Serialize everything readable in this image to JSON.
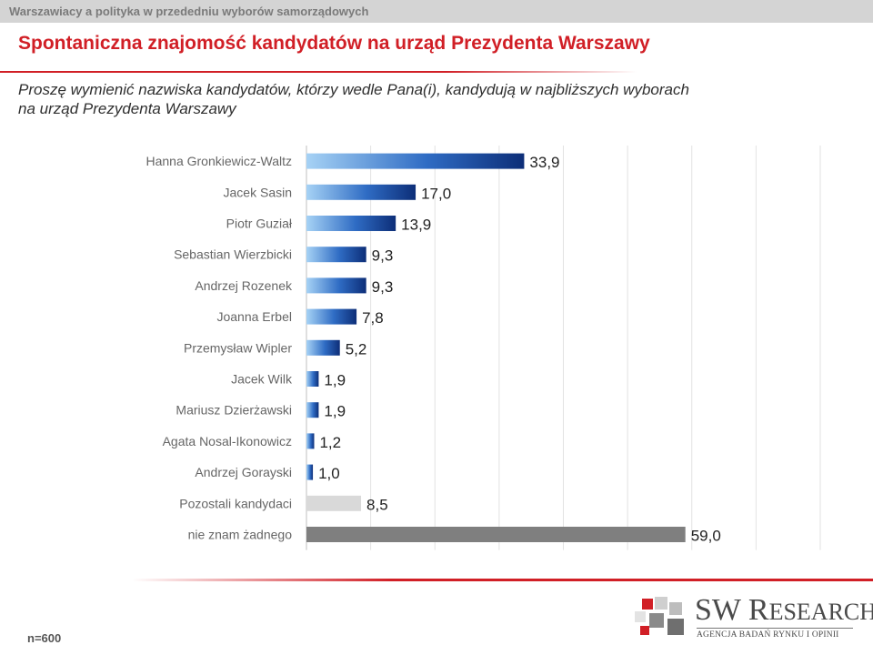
{
  "header": {
    "section": "Warszawiacy a polityka w przededniu wyborów samorządowych"
  },
  "title": "Spontaniczna znajomość kandydatów na urząd Prezydenta Warszawy",
  "question": {
    "line1": "Proszę wymienić nazwiska kandydatów, którzy wedle Pana(i), kandydują w najbliższych wyborach",
    "line2": "na urząd Prezydenta Warszawy"
  },
  "footer": {
    "sample": "n=600"
  },
  "logo": {
    "name_big_1": "SW",
    "name_rest_1": " R",
    "name_rest_2": "ESEARCH",
    "tagline": "AGENCJA BADAŃ RYNKU I OPINII"
  },
  "colors": {
    "accent": "#d11f26",
    "bar_blue_light": "#a6d2f5",
    "bar_blue_dark": "#0d2e78",
    "bar_other": "#d9d9d9",
    "bar_none": "#7f7f7f"
  },
  "chart_data": {
    "type": "bar",
    "orientation": "horizontal",
    "categories": [
      "Hanna Gronkiewicz-Waltz",
      "Jacek Sasin",
      "Piotr Guział",
      "Sebastian Wierzbicki",
      "Andrzej Rozenek",
      "Joanna Erbel",
      "Przemysław Wipler",
      "Jacek Wilk",
      "Mariusz Dzierżawski",
      "Agata Nosal-Ikonowicz",
      "Andrzej Gorayski",
      "Pozostali kandydaci",
      "nie znam żadnego"
    ],
    "values": [
      33.9,
      17.0,
      13.9,
      9.3,
      9.3,
      7.8,
      5.2,
      1.9,
      1.9,
      1.2,
      1.0,
      8.5,
      59.0
    ],
    "value_labels": [
      "33,9",
      "17,0",
      "13,9",
      "9,3",
      "9,3",
      "7,8",
      "5,2",
      "1,9",
      "1,9",
      "1,2",
      "1,0",
      "8,5",
      "59,0"
    ],
    "bar_styles": [
      "candidate",
      "candidate",
      "candidate",
      "candidate",
      "candidate",
      "candidate",
      "candidate",
      "candidate",
      "candidate",
      "candidate",
      "candidate",
      "other",
      "none"
    ],
    "xlim": [
      0,
      80
    ],
    "grid": true,
    "legend": "none"
  }
}
